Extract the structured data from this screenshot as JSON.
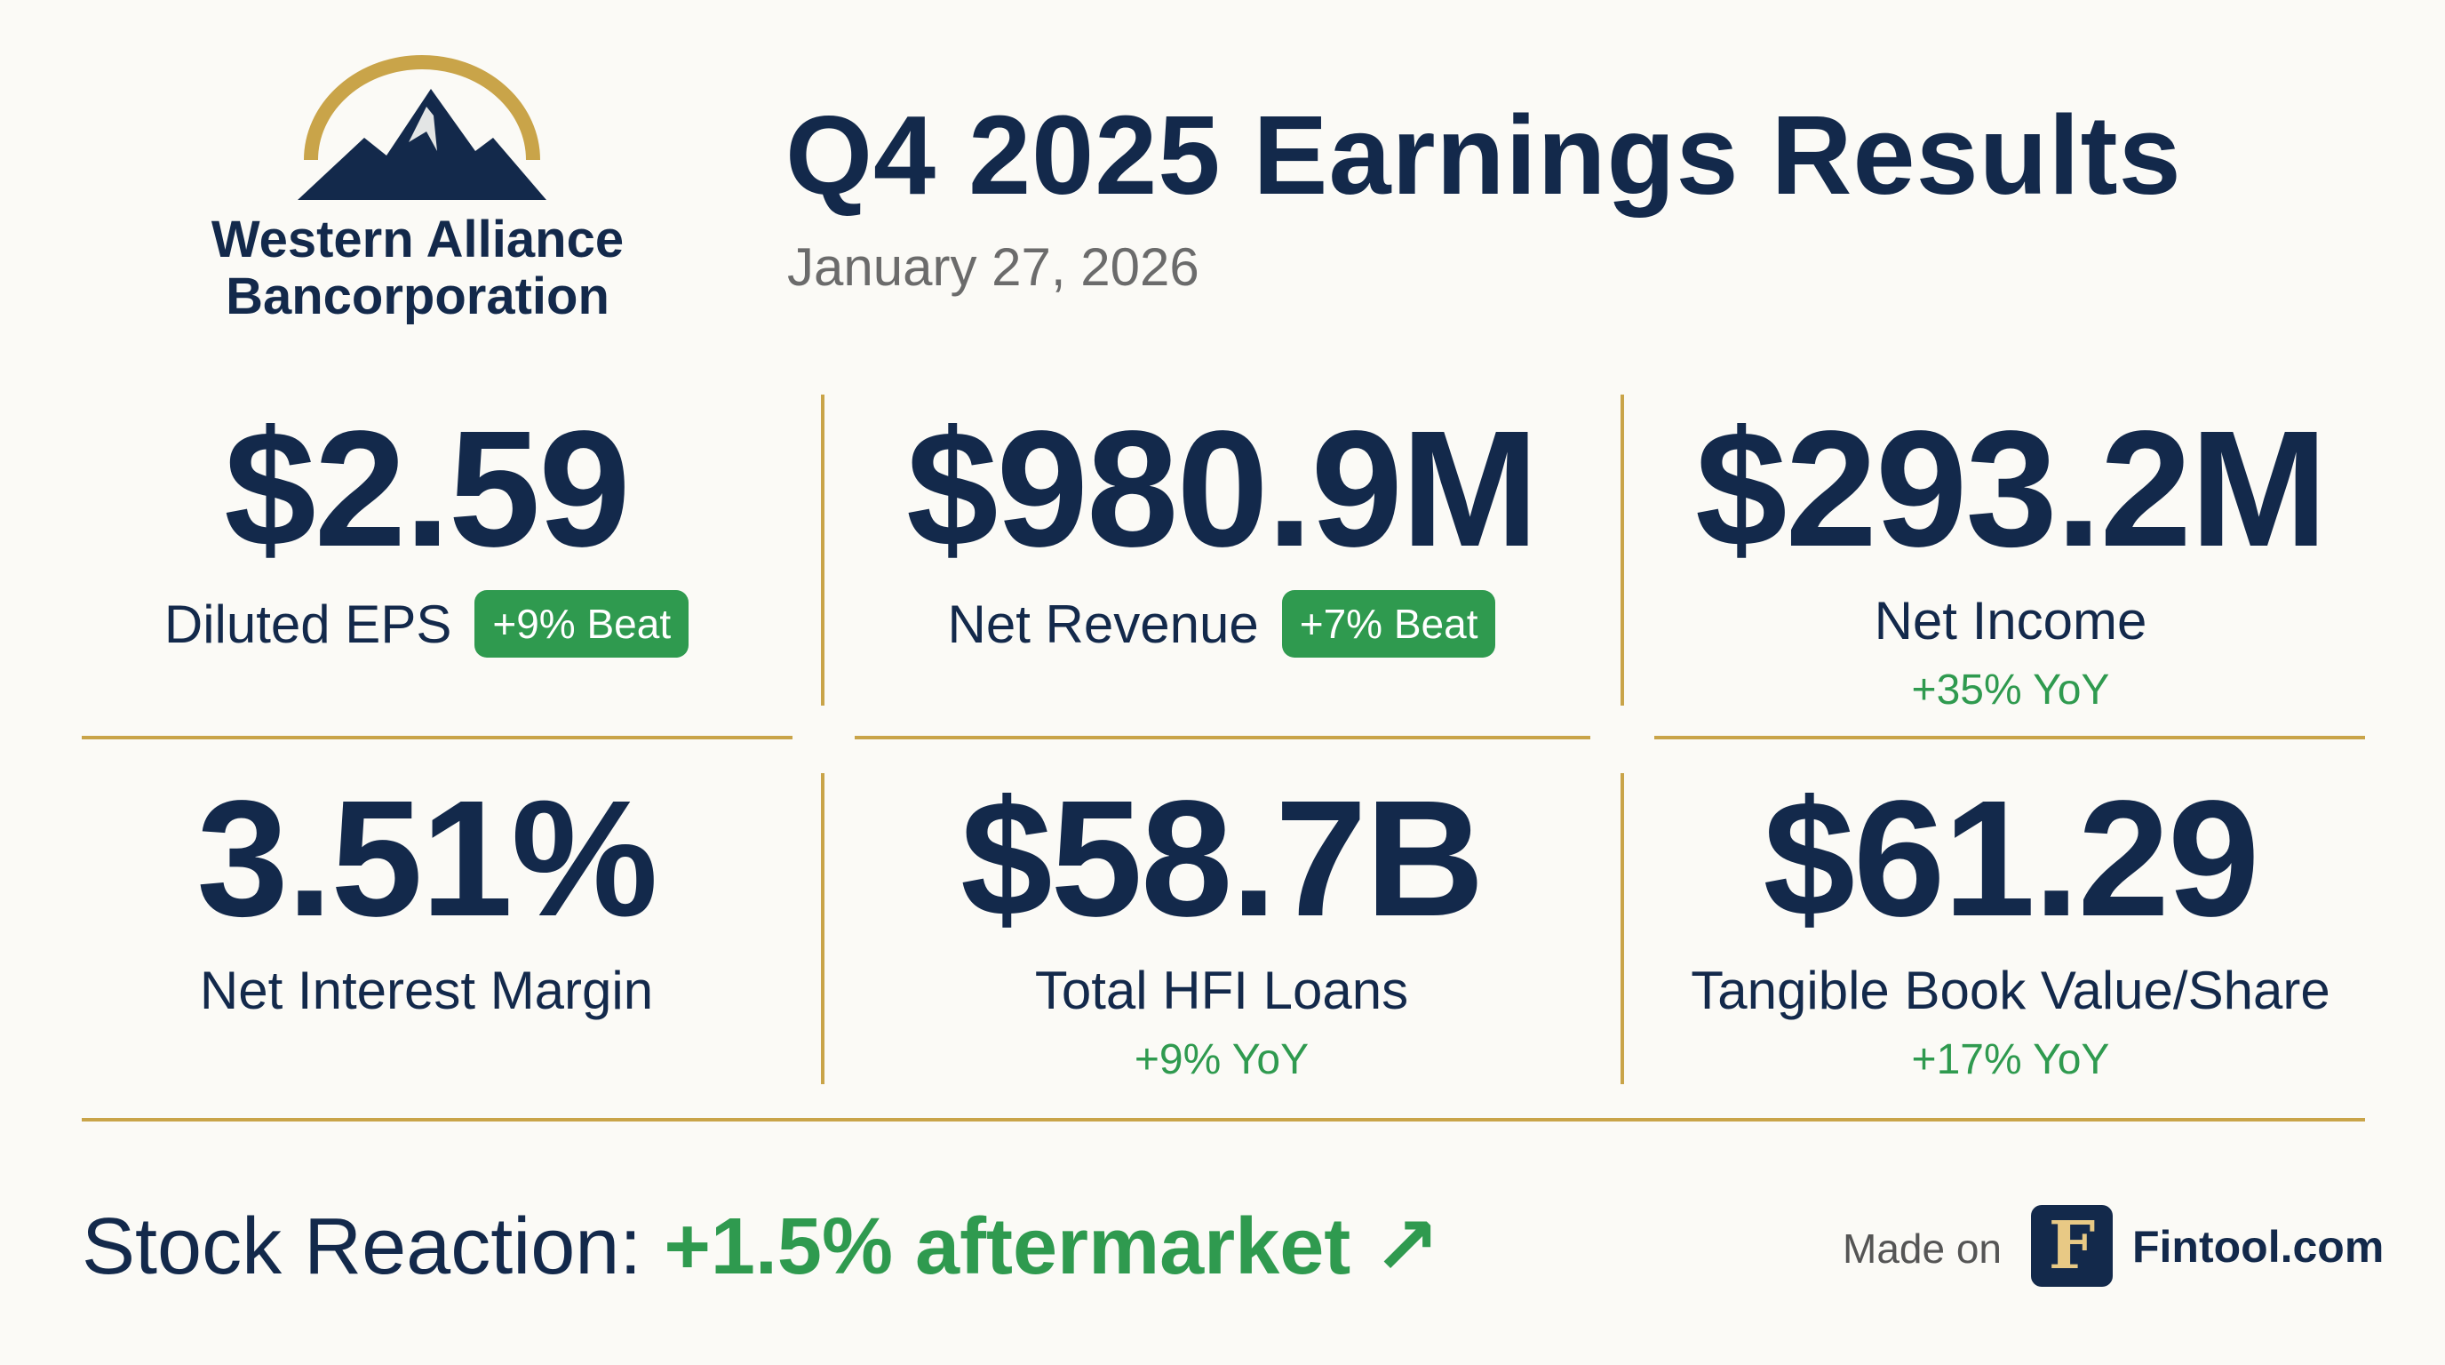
{
  "header": {
    "company_line1": "Western Alliance",
    "company_line2": "Bancorporation",
    "title": "Q4 2025 Earnings Results",
    "date": "January 27, 2026"
  },
  "colors": {
    "navy": "#13294b",
    "gold": "#c9a449",
    "green": "#2f9a4f"
  },
  "metrics": [
    {
      "value": "$2.59",
      "label": "Diluted EPS",
      "badge": "+9% Beat"
    },
    {
      "value": "$980.9M",
      "label": "Net Revenue",
      "badge": "+7% Beat"
    },
    {
      "value": "$293.2M",
      "label": "Net Income",
      "yoy": "+35% YoY"
    },
    {
      "value": "3.51%",
      "label": "Net Interest Margin"
    },
    {
      "value": "$58.7B",
      "label": "Total HFI Loans",
      "yoy": "+9% YoY"
    },
    {
      "value": "$61.29",
      "label": "Tangible Book Value/Share",
      "yoy": "+17% YoY"
    }
  ],
  "footer": {
    "stock_label": "Stock Reaction: ",
    "stock_value": "+1.5% aftermarket",
    "arrow": "↗",
    "made_on": "Made on",
    "brand_letter": "F",
    "brand_name": "Fintool.com"
  }
}
